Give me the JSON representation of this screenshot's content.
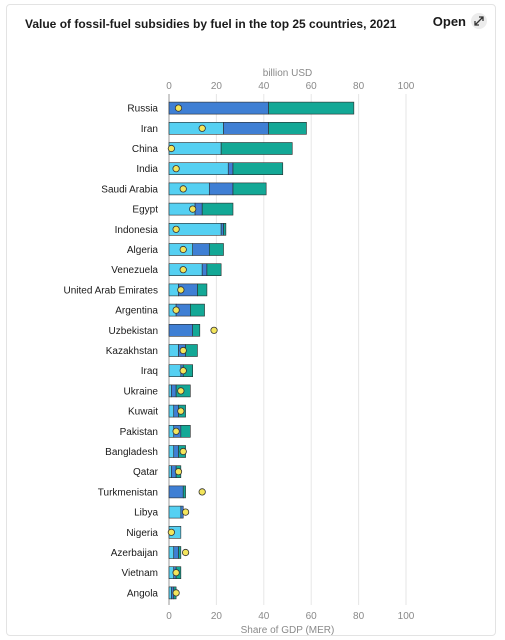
{
  "title": "Value of fossil-fuel subsidies by fuel in the top 25 countries, 2021",
  "open_button": {
    "label": "Open",
    "icon": "external-expand-icon"
  },
  "colors": {
    "segment_light": "#55d0f2",
    "segment_mid": "#3f7fd4",
    "segment_dark": "#13a896",
    "marker": "#f3e55b",
    "marker_stroke": "#333333"
  },
  "chart_data": {
    "type": "bar",
    "orientation": "horizontal",
    "stacked": true,
    "top_axis_label": "billion USD",
    "bottom_axis_label": "Share of GDP (MER)",
    "xlim": [
      0,
      100
    ],
    "xticks": [
      0,
      20,
      40,
      60,
      80,
      100
    ],
    "grid": true,
    "categories": [
      "Russia",
      "Iran",
      "China",
      "India",
      "Saudi Arabia",
      "Egypt",
      "Indonesia",
      "Algeria",
      "Venezuela",
      "United Arab Emirates",
      "Argentina",
      "Uzbekistan",
      "Kazakhstan",
      "Iraq",
      "Ukraine",
      "Kuwait",
      "Pakistan",
      "Bangladesh",
      "Qatar",
      "Turkmenistan",
      "Libya",
      "Nigeria",
      "Azerbaijan",
      "Vietnam",
      "Angola"
    ],
    "series": [
      {
        "values": [
          0,
          23,
          22,
          25,
          17,
          11,
          22,
          10,
          14,
          4,
          3,
          0,
          4,
          5,
          1,
          2,
          2,
          2,
          1,
          0,
          5,
          5,
          2,
          2,
          1
        ]
      },
      {
        "values": [
          42,
          19,
          0,
          2,
          10,
          3,
          1,
          7,
          2,
          8,
          6,
          10,
          3,
          1,
          2,
          2,
          3,
          2,
          2,
          6,
          1,
          0,
          2,
          1,
          1
        ]
      },
      {
        "values": [
          36,
          16,
          30,
          21,
          14,
          13,
          1,
          6,
          6,
          4,
          6,
          3,
          5,
          4,
          6,
          3,
          4,
          3,
          2,
          1,
          0,
          0,
          1,
          2,
          1
        ]
      }
    ],
    "gdp_share_markers": [
      4,
      14,
      1,
      3,
      6,
      10,
      3,
      6,
      6,
      5,
      3,
      19,
      6,
      6,
      5,
      5,
      3,
      6,
      4,
      14,
      7,
      1,
      7,
      3,
      3
    ]
  }
}
